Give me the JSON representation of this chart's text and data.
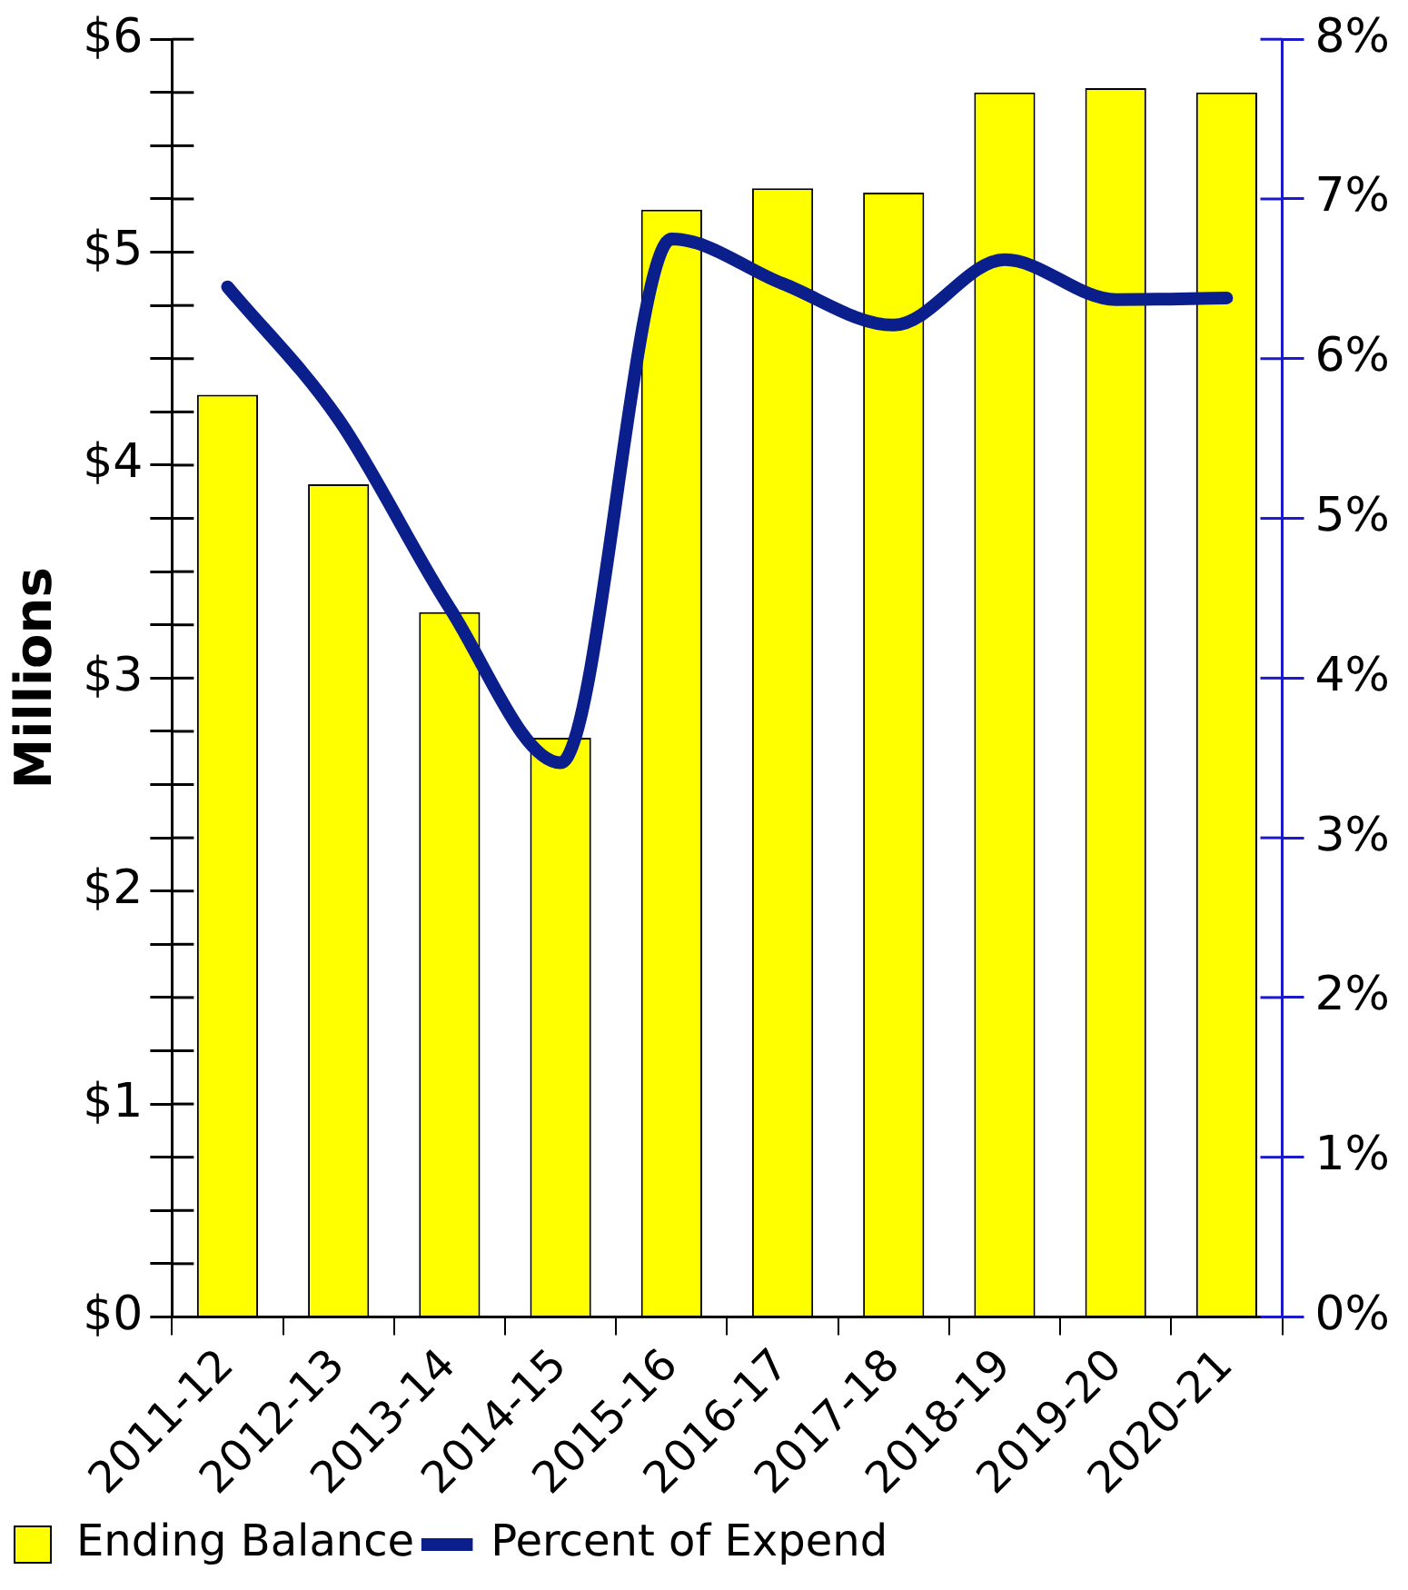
{
  "chart_data": {
    "type": "bar",
    "ylabel": "Millions",
    "categories": [
      "2011-12",
      "2012-13",
      "2013-14",
      "2014-15",
      "2015-16",
      "2016-17",
      "2017-18",
      "2018-19",
      "2019-20",
      "2020-21"
    ],
    "series": [
      {
        "name": "Ending Balance",
        "color": "#ffff00",
        "values": [
          4.33,
          3.91,
          3.31,
          2.72,
          5.2,
          5.3,
          5.28,
          5.75,
          5.77,
          5.75
        ]
      },
      {
        "name": "Percent of Expend",
        "type": "line",
        "axis": "y2",
        "color": "#0a1e8c",
        "values": [
          6.45,
          5.62,
          4.44,
          3.47,
          6.75,
          6.47,
          6.21,
          6.62,
          6.37,
          6.38
        ]
      }
    ],
    "ylim": [
      0,
      6
    ],
    "yticks": [
      {
        "value": 0,
        "label": "$0"
      },
      {
        "value": 0.25,
        "label": null
      },
      {
        "value": 0.5,
        "label": null
      },
      {
        "value": 0.75,
        "label": null
      },
      {
        "value": 1,
        "label": "$1"
      },
      {
        "value": 1.25,
        "label": null
      },
      {
        "value": 1.5,
        "label": null
      },
      {
        "value": 1.75,
        "label": null
      },
      {
        "value": 2,
        "label": "$2"
      },
      {
        "value": 2.25,
        "label": null
      },
      {
        "value": 2.5,
        "label": null
      },
      {
        "value": 2.75,
        "label": null
      },
      {
        "value": 3,
        "label": "$3"
      },
      {
        "value": 3.25,
        "label": null
      },
      {
        "value": 3.5,
        "label": null
      },
      {
        "value": 3.75,
        "label": null
      },
      {
        "value": 4,
        "label": "$4"
      },
      {
        "value": 4.25,
        "label": null
      },
      {
        "value": 4.5,
        "label": null
      },
      {
        "value": 4.75,
        "label": null
      },
      {
        "value": 5,
        "label": "$5"
      },
      {
        "value": 5.25,
        "label": null
      },
      {
        "value": 5.5,
        "label": null
      },
      {
        "value": 5.75,
        "label": null
      },
      {
        "value": 6,
        "label": "$6"
      }
    ],
    "y2lim": [
      0,
      8
    ],
    "y2ticks": [
      {
        "value": 0,
        "label": "0%"
      },
      {
        "value": 1,
        "label": "1%"
      },
      {
        "value": 2,
        "label": "2%"
      },
      {
        "value": 3,
        "label": "3%"
      },
      {
        "value": 4,
        "label": "4%"
      },
      {
        "value": 5,
        "label": "5%"
      },
      {
        "value": 6,
        "label": "6%"
      },
      {
        "value": 7,
        "label": "7%"
      },
      {
        "value": 8,
        "label": "8%"
      }
    ],
    "grid": false,
    "legend": "bottom left",
    "marker": "none",
    "line_style": "solid"
  }
}
